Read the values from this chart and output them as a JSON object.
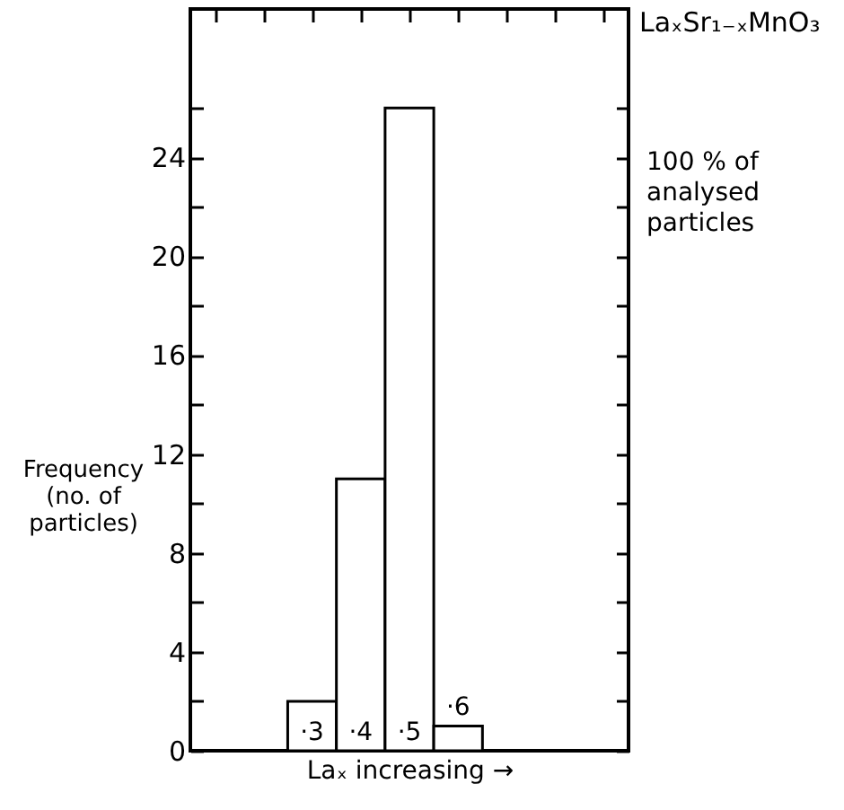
{
  "chart_data": {
    "type": "bar",
    "title": "LaₓSr₁₋ₓMnO₃",
    "xlabel": "Laₓ  increasing  →",
    "ylabel": "Frequency (no. of particles)",
    "annotations": [
      "100 % of analysed particles"
    ],
    "categories": [
      null,
      null,
      "·3",
      "·4",
      "·5",
      "·6",
      null,
      null,
      null
    ],
    "series": [
      {
        "color": "#ffffff",
        "values": [
          null,
          null,
          2,
          11,
          26,
          1,
          null,
          null,
          null
        ]
      }
    ],
    "ylim": [
      0,
      30
    ],
    "yticks": [
      0,
      {
        "value": 2,
        "label": null
      },
      4,
      {
        "value": 6,
        "label": null
      },
      8,
      {
        "value": 10,
        "label": null
      },
      12,
      {
        "value": 14,
        "label": null
      },
      16,
      {
        "value": 18,
        "label": null
      },
      20,
      {
        "value": 22,
        "label": null
      },
      24,
      {
        "value": 26,
        "label": null
      }
    ],
    "grid": false,
    "legend": false
  }
}
